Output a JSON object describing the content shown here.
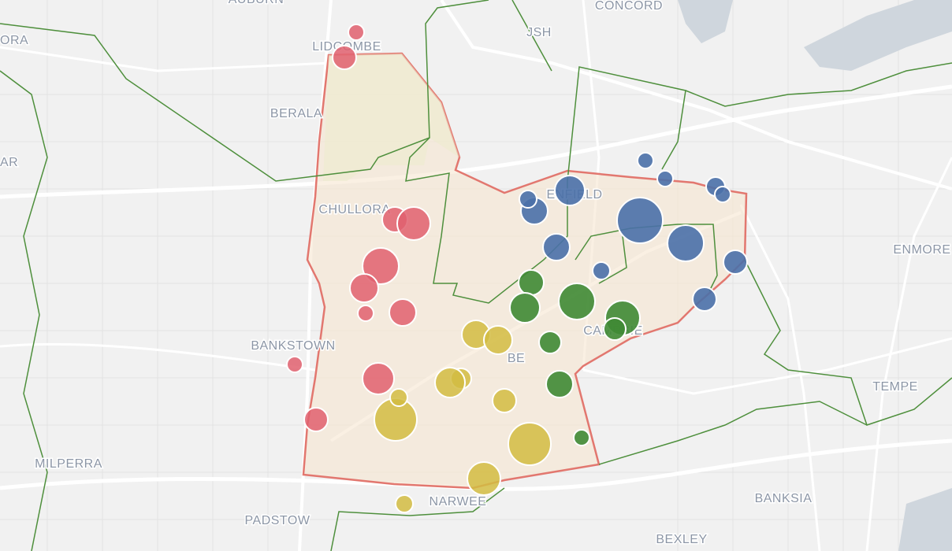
{
  "map": {
    "labels": [
      "AUBURN",
      "CONCORD",
      "LIDCOMBE",
      "ORA",
      "JSH",
      "BERALA",
      "AR",
      "CHULLORA",
      "ENFIELD",
      "ENMORE",
      "BANKSTOWN",
      "CAMPSIE",
      "BE",
      "TEMPE",
      "MILPERRA",
      "NARWEE",
      "PADSTOW",
      "BANKSIA",
      "BEXLEY"
    ]
  }
}
